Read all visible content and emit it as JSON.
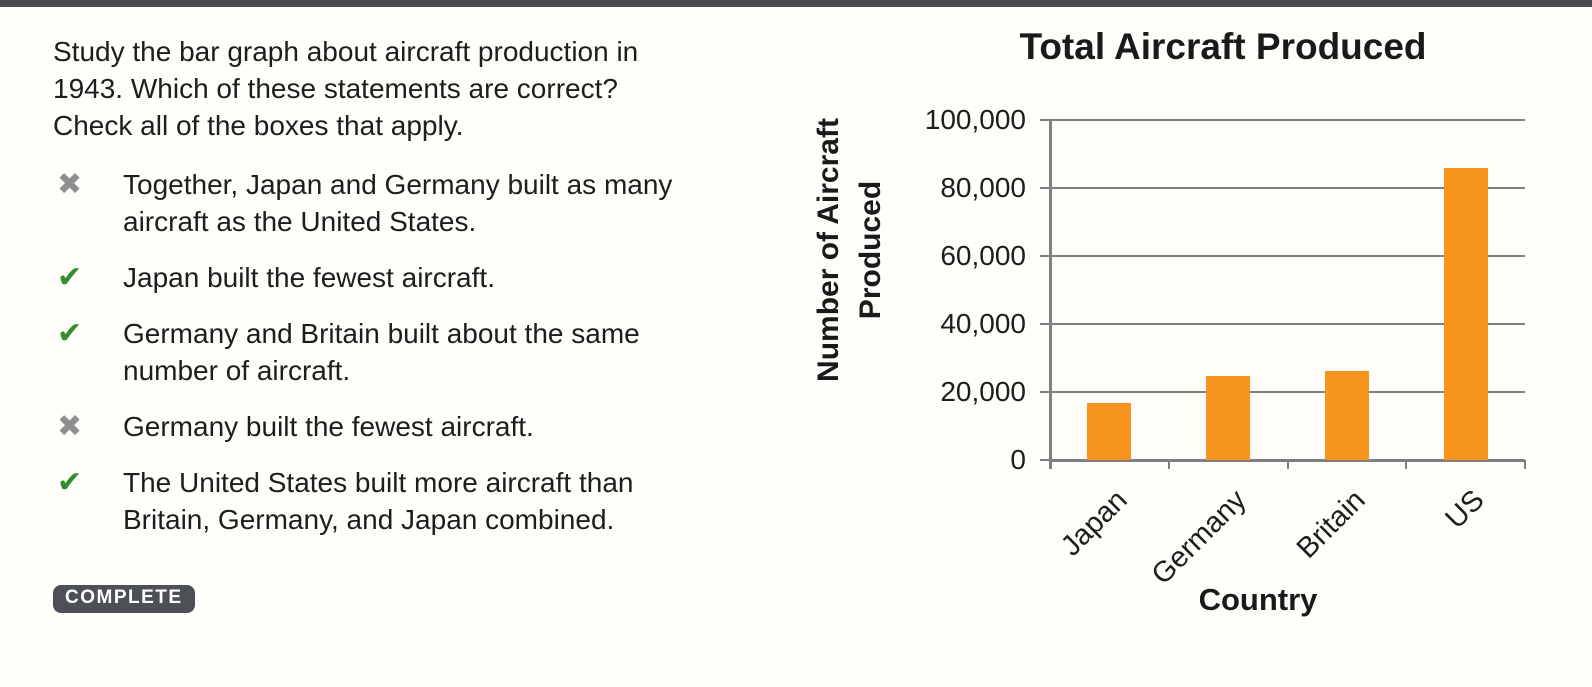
{
  "page": {
    "background": "#fffefa",
    "top_bar_color": "#4a4a4f"
  },
  "question": {
    "lines": [
      "Study the bar graph about aircraft production in",
      "1943. Which of these statements are correct?",
      "Check all of the boxes that apply."
    ]
  },
  "statements": [
    {
      "status": "incorrect",
      "glyph": "✖",
      "lines": [
        "Together, Japan and Germany built as many",
        "aircraft as the United States."
      ]
    },
    {
      "status": "correct",
      "glyph": "✔",
      "lines": [
        "Japan built the fewest aircraft."
      ]
    },
    {
      "status": "correct",
      "glyph": "✔",
      "lines": [
        "Germany and Britain built about the same",
        "number of aircraft."
      ]
    },
    {
      "status": "incorrect",
      "glyph": "✖",
      "lines": [
        "Germany built the fewest aircraft."
      ]
    },
    {
      "status": "correct",
      "glyph": "✔",
      "lines": [
        "The United States built more aircraft than",
        "Britain, Germany, and Japan combined."
      ]
    }
  ],
  "icons": {
    "check_color": "#2f8f2f",
    "x_color": "#8e8e8e"
  },
  "complete_button": {
    "label": "COMPLETE",
    "bg": "#4d5057",
    "text_color": "#ffffff"
  },
  "chart_data": {
    "type": "bar",
    "title": "Total Aircraft Produced",
    "categories": [
      "Japan",
      "Germany",
      "Britain",
      "US"
    ],
    "values": [
      16700,
      24800,
      26300,
      85900
    ],
    "xlabel": "Country",
    "ylabel": "Number of Aircraft Produced",
    "ylabel_lines": [
      "Number of Aircraft",
      "Produced"
    ],
    "ylim": [
      0,
      100000
    ],
    "ytick_step": 20000,
    "ytick_labels": [
      "0",
      "20,000",
      "40,000",
      "60,000",
      "80,000",
      "100,000"
    ],
    "grid": true,
    "legend": false,
    "bar_color": "#F7941E",
    "axis_color": "#7f7f7f"
  }
}
